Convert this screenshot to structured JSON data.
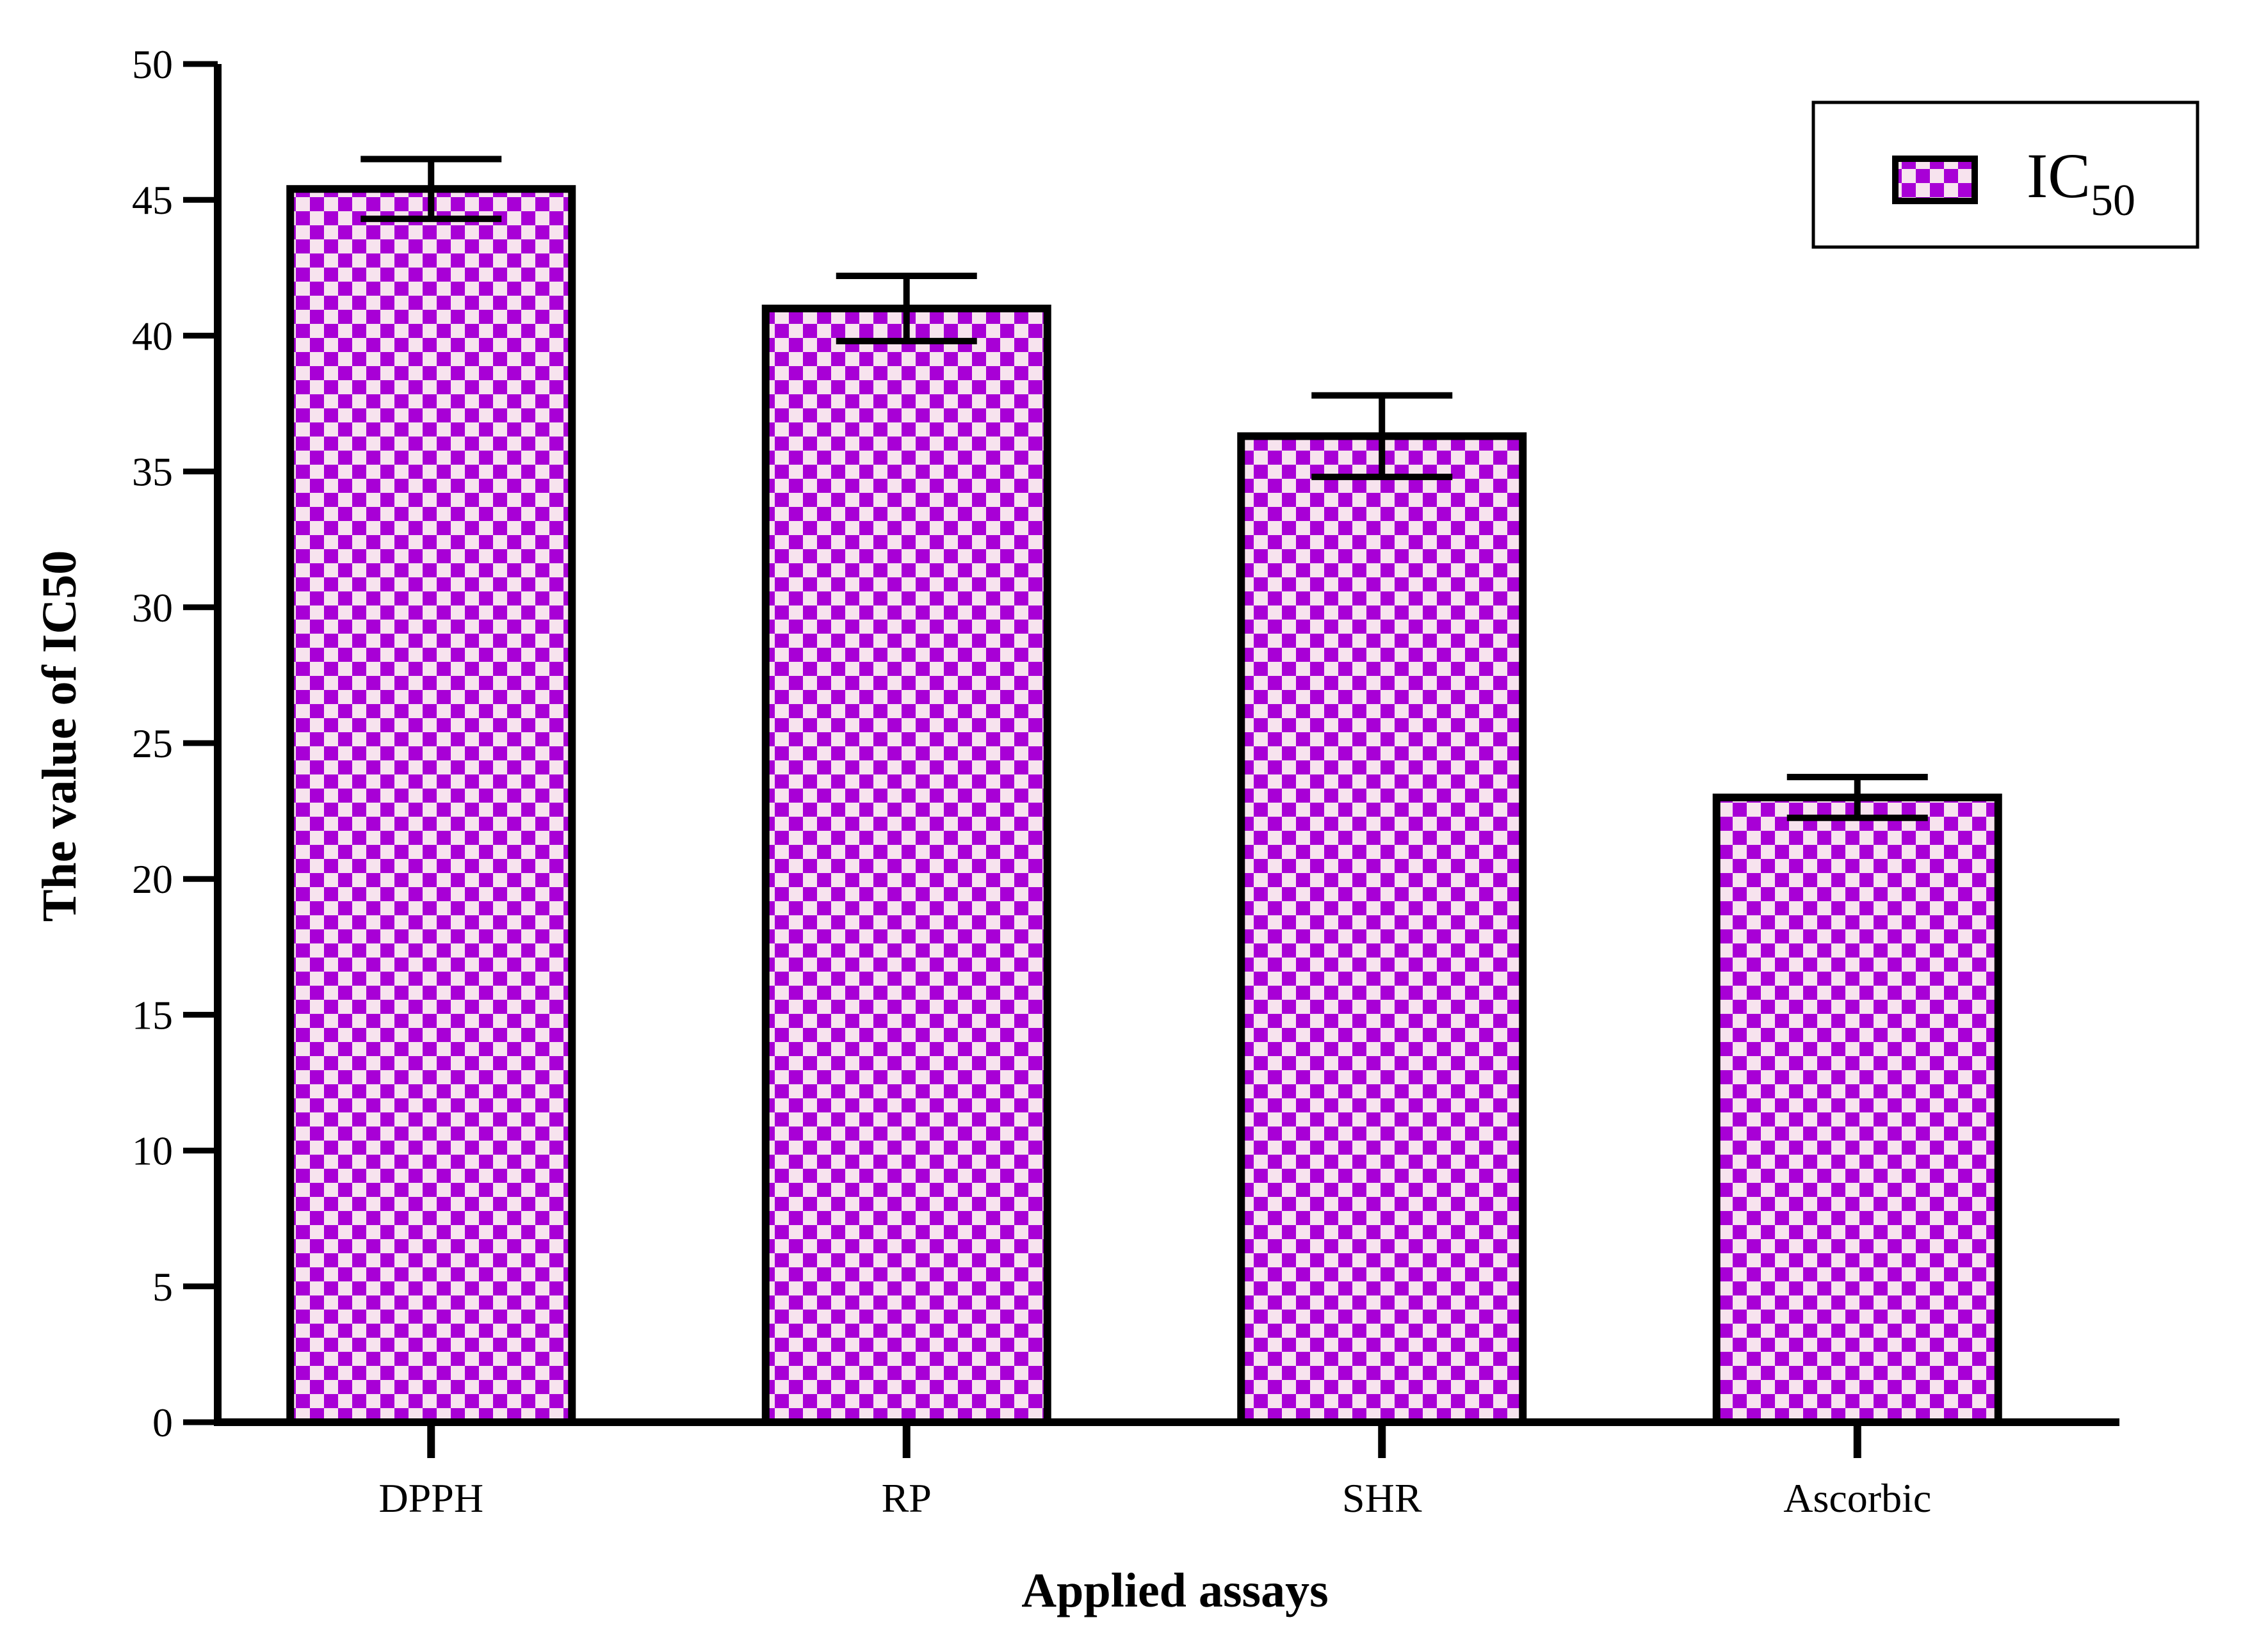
{
  "chart_data": {
    "type": "bar",
    "categories": [
      "DPPH",
      "RP",
      "SHR",
      "Ascorbic"
    ],
    "series": [
      {
        "name": "IC50",
        "values": [
          45.4,
          41.0,
          36.3,
          23.0
        ],
        "error": [
          1.1,
          1.2,
          1.5,
          0.75
        ]
      }
    ],
    "xlabel": "Applied assays",
    "ylabel": "The value of IC50",
    "ylim": [
      0,
      50
    ],
    "yticks": [
      0,
      5,
      10,
      15,
      20,
      25,
      30,
      35,
      40,
      45,
      50
    ],
    "grid": false,
    "legend": {
      "placement": "top-right",
      "label_main": "IC",
      "label_sub": "50"
    },
    "colors": {
      "checker_dark": "#a800d6",
      "checker_light": "#f7e3ee",
      "stroke": "#000000"
    }
  }
}
